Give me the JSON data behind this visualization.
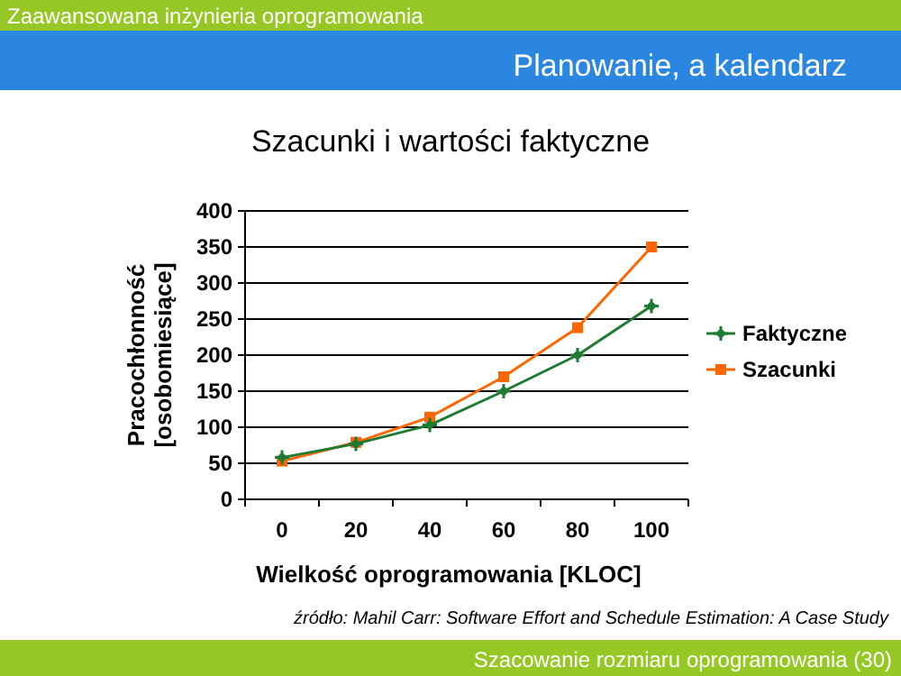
{
  "chart_data": {
    "type": "line",
    "title": "Szacunki i wartości faktyczne",
    "xlabel": "Wielkość oprogramowania [KLOC]",
    "ylabel": "Pracochłonność\n[osobomiesiące]",
    "categories": [
      "0",
      "20",
      "40",
      "60",
      "80",
      "100"
    ],
    "series": [
      {
        "name": "Faktyczne",
        "color": "#1e7b32",
        "marker": "cross",
        "values": [
          58,
          77,
          103,
          150,
          200,
          268
        ]
      },
      {
        "name": "Szacunki",
        "color": "#ff6600",
        "marker": "square",
        "values": [
          53,
          79,
          114,
          170,
          238,
          350
        ]
      }
    ],
    "ylim": [
      0,
      400
    ],
    "yticks": [
      0,
      50,
      100,
      150,
      200,
      250,
      300,
      350,
      400
    ],
    "grid": "y",
    "legend": "right",
    "line_style": "solid",
    "annotations": [
      "Zaawansowana inżynieria oprogramowania",
      "Planowanie, a kalendarz",
      "źródło: Mahil Carr: Software Effort and Schedule Estimation: A Case Study",
      "Szacowanie rozmiaru oprogramowania (30)"
    ]
  }
}
